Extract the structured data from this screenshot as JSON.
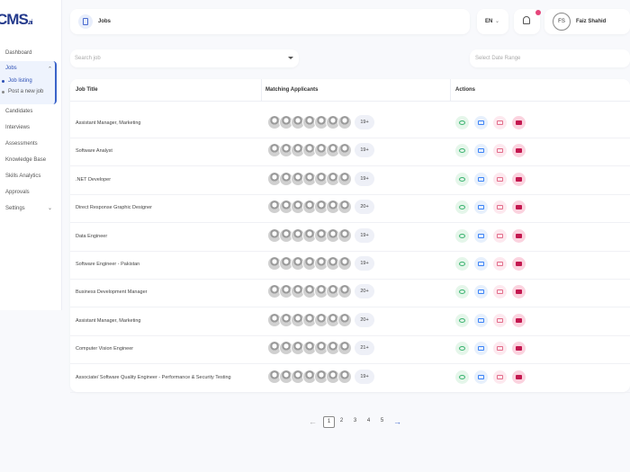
{
  "logo": {
    "main": "CMS",
    "suffix": ".ai"
  },
  "sidebar": {
    "nav": [
      "Dashboard",
      "Jobs",
      "Candidates",
      "Interviews",
      "Assessments",
      "Knowledge Base",
      "Skills Analytics",
      "Approvals",
      "Settings"
    ],
    "jobs_submenu": [
      "Job listing",
      "Post a new job"
    ]
  },
  "header": {
    "title": "Jobs",
    "language": "EN",
    "user_initials": "FS",
    "user_name": "Faiz Shahid"
  },
  "filters": {
    "search_placeholder": "Search job",
    "date_placeholder": "Select Date Range"
  },
  "table": {
    "columns": [
      "Job Title",
      "Matching Applicants",
      "Actions"
    ],
    "rows": [
      [
        "Assistant Manager, Marketing",
        "19+"
      ],
      [
        "Software Analyst",
        "19+"
      ],
      [
        ".NET Developer",
        "19+"
      ],
      [
        "Direct Response Graphic Designer",
        "20+"
      ],
      [
        "Data Engineer",
        "19+"
      ],
      [
        "Software Engineer - Pakistan",
        "19+"
      ],
      [
        "Business Development Manager",
        "20+"
      ],
      [
        "Assistant Manager, Marketing",
        "20+"
      ],
      [
        "Computer Vision Engineer",
        "21+"
      ],
      [
        "Associate/ Software Quality Engineer - Performance & Security Testing",
        "19+"
      ]
    ]
  },
  "pagination": [
    "1",
    "2",
    "3",
    "4",
    "5"
  ]
}
